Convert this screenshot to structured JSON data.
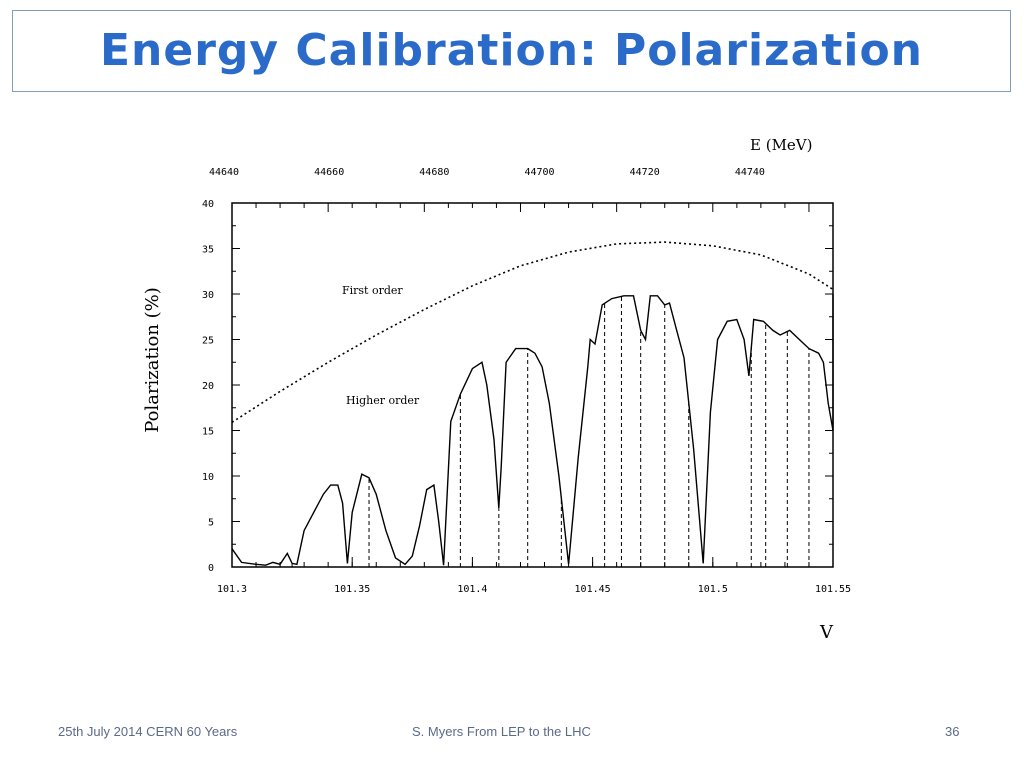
{
  "slide": {
    "title": "Energy Calibration: Polarization"
  },
  "footer": {
    "left": "25th July 2014 CERN 60 Years",
    "center": "S. Myers From LEP to the LHC",
    "page_number": "36"
  },
  "chart_data": {
    "type": "line",
    "xlabel": "V",
    "ylabel": "Polarization (%)",
    "x2label": "E (MeV)",
    "xlim": [
      101.3,
      101.55
    ],
    "ylim": [
      0,
      40
    ],
    "x_ticks": [
      "101.3",
      "101.35",
      "101.4",
      "101.45",
      "101.5",
      "101.55"
    ],
    "y_ticks": [
      "0",
      "5",
      "10",
      "15",
      "20",
      "25",
      "30",
      "35",
      "40"
    ],
    "top_ticks": [
      "44640",
      "44660",
      "44680",
      "44700",
      "44720",
      "44740"
    ],
    "annotations": [
      "First order",
      "Higher order"
    ],
    "series": [
      {
        "name": "First order",
        "style": "dotted",
        "x": [
          101.3,
          101.32,
          101.34,
          101.36,
          101.38,
          101.4,
          101.42,
          101.44,
          101.46,
          101.48,
          101.5,
          101.52,
          101.54,
          101.55
        ],
        "y": [
          15.9,
          19.3,
          22.5,
          25.5,
          28.3,
          30.9,
          33.1,
          34.6,
          35.5,
          35.7,
          35.3,
          34.3,
          32.2,
          30.5
        ]
      },
      {
        "name": "Higher order",
        "style": "solid",
        "x": [
          101.3,
          101.304,
          101.31,
          101.314,
          101.317,
          101.32,
          101.323,
          101.325,
          101.327,
          101.33,
          101.335,
          101.338,
          101.341,
          101.344,
          101.346,
          101.348,
          101.35,
          101.354,
          101.357,
          101.36,
          101.364,
          101.368,
          101.372,
          101.375,
          101.378,
          101.381,
          101.384,
          101.386,
          101.388,
          101.391,
          101.395,
          101.4,
          101.404,
          101.406,
          101.409,
          101.411,
          101.412,
          101.414,
          101.418,
          101.423,
          101.426,
          101.429,
          101.432,
          101.436,
          101.44,
          101.444,
          101.448,
          101.449,
          101.451,
          101.454,
          101.458,
          101.463,
          101.467,
          101.47,
          101.472,
          101.474,
          101.477,
          101.48,
          101.482,
          101.485,
          101.488,
          101.492,
          101.496,
          101.499,
          101.502,
          101.506,
          101.51,
          101.513,
          101.515,
          101.517,
          101.521,
          101.525,
          101.528,
          101.532,
          101.536,
          101.54,
          101.544,
          101.546,
          101.548,
          101.55,
          101.55
        ],
        "y": [
          2,
          0.5,
          0.3,
          0.2,
          0.5,
          0.3,
          1.5,
          0.4,
          0.3,
          4,
          6.5,
          8,
          9,
          9,
          7,
          0.4,
          6,
          10.2,
          9.8,
          8,
          4,
          1,
          0.3,
          1.2,
          4.5,
          8.5,
          9,
          5,
          0.2,
          16,
          19,
          21.8,
          22.5,
          20,
          14,
          6.5,
          11,
          22.5,
          24,
          24,
          23.5,
          22,
          18,
          10,
          0.3,
          12,
          22,
          25,
          24.5,
          28.8,
          29.5,
          29.8,
          29.8,
          26,
          25,
          29.8,
          29.8,
          28.8,
          29,
          26,
          23,
          13,
          0.4,
          17,
          25,
          27,
          27.2,
          25,
          21,
          27.2,
          27,
          26,
          25.5,
          26,
          25,
          24,
          23.5,
          22.5,
          18,
          15,
          30
        ]
      }
    ]
  }
}
